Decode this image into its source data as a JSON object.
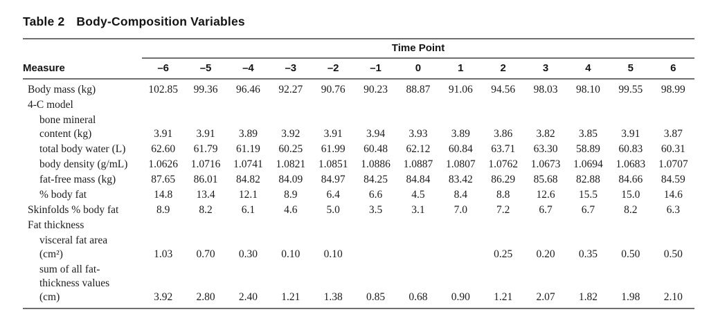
{
  "title": {
    "number": "Table 2",
    "text": "Body-Composition Variables"
  },
  "table": {
    "group_header": "Time Point",
    "measure_header": "Measure",
    "time_points": [
      "–6",
      "–5",
      "–4",
      "–3",
      "–2",
      "–1",
      "0",
      "1",
      "2",
      "3",
      "4",
      "5",
      "6"
    ],
    "rows": [
      {
        "label": "Body mass (kg)",
        "indent": 0,
        "values": [
          "102.85",
          "99.36",
          "96.46",
          "92.27",
          "90.76",
          "90.23",
          "88.87",
          "91.06",
          "94.56",
          "98.03",
          "98.10",
          "99.55",
          "98.99"
        ]
      },
      {
        "label": "4-C model",
        "indent": 0,
        "values": []
      },
      {
        "label": "bone mineral\ncontent (kg)",
        "indent": 1,
        "values": [
          "3.91",
          "3.91",
          "3.89",
          "3.92",
          "3.91",
          "3.94",
          "3.93",
          "3.89",
          "3.86",
          "3.82",
          "3.85",
          "3.91",
          "3.87"
        ]
      },
      {
        "label": "total body water (L)",
        "indent": 1,
        "values": [
          "62.60",
          "61.79",
          "61.19",
          "60.25",
          "61.99",
          "60.48",
          "62.12",
          "60.84",
          "63.71",
          "63.30",
          "58.89",
          "60.83",
          "60.31"
        ]
      },
      {
        "label": "body density (g/mL)",
        "indent": 1,
        "values": [
          "1.0626",
          "1.0716",
          "1.0741",
          "1.0821",
          "1.0851",
          "1.0886",
          "1.0887",
          "1.0807",
          "1.0762",
          "1.0673",
          "1.0694",
          "1.0683",
          "1.0707"
        ]
      },
      {
        "label": "fat-free mass (kg)",
        "indent": 1,
        "values": [
          "87.65",
          "86.01",
          "84.82",
          "84.09",
          "84.97",
          "84.25",
          "84.84",
          "83.42",
          "86.29",
          "85.68",
          "82.88",
          "84.66",
          "84.59"
        ]
      },
      {
        "label": "% body fat",
        "indent": 1,
        "values": [
          "14.8",
          "13.4",
          "12.1",
          "8.9",
          "6.4",
          "6.6",
          "4.5",
          "8.4",
          "8.8",
          "12.6",
          "15.5",
          "15.0",
          "14.6"
        ]
      },
      {
        "label": "Skinfolds % body fat",
        "indent": 0,
        "values": [
          "8.9",
          "8.2",
          "6.1",
          "4.6",
          "5.0",
          "3.5",
          "3.1",
          "7.0",
          "7.2",
          "6.7",
          "6.7",
          "8.2",
          "6.3"
        ]
      },
      {
        "label": "Fat thickness",
        "indent": 0,
        "values": []
      },
      {
        "label": "visceral fat area\n(cm²)",
        "indent": 1,
        "values": [
          "1.03",
          "0.70",
          "0.30",
          "0.10",
          "0.10",
          "",
          "",
          "",
          "0.25",
          "0.20",
          "0.35",
          "0.50",
          "0.50"
        ]
      },
      {
        "label": "sum of all fat-\nthickness values\n(cm)",
        "indent": 1,
        "values": [
          "3.92",
          "2.80",
          "2.40",
          "1.21",
          "1.38",
          "0.85",
          "0.68",
          "0.90",
          "1.21",
          "2.07",
          "1.82",
          "1.98",
          "2.10"
        ]
      }
    ]
  }
}
